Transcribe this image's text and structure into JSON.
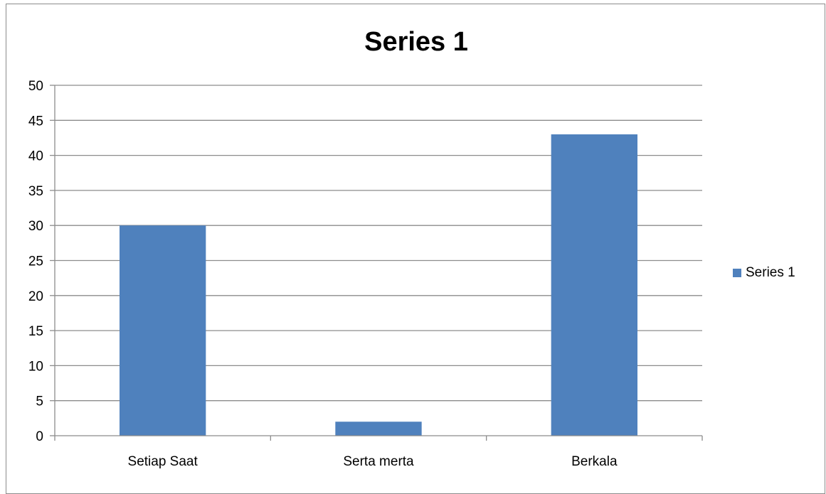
{
  "chart_data": {
    "type": "bar",
    "title": "Series 1",
    "categories": [
      "Setiap Saat",
      "Serta merta",
      "Berkala"
    ],
    "series": [
      {
        "name": "Series 1",
        "values": [
          30,
          2,
          43
        ],
        "color": "#4F81BD"
      }
    ],
    "ylim": [
      0,
      50
    ],
    "yticks": [
      0,
      5,
      10,
      15,
      20,
      25,
      30,
      35,
      40,
      45,
      50
    ],
    "xlabel": "",
    "ylabel": "",
    "grid": true,
    "legend": "right"
  },
  "legend": {
    "label": "Series 1"
  }
}
